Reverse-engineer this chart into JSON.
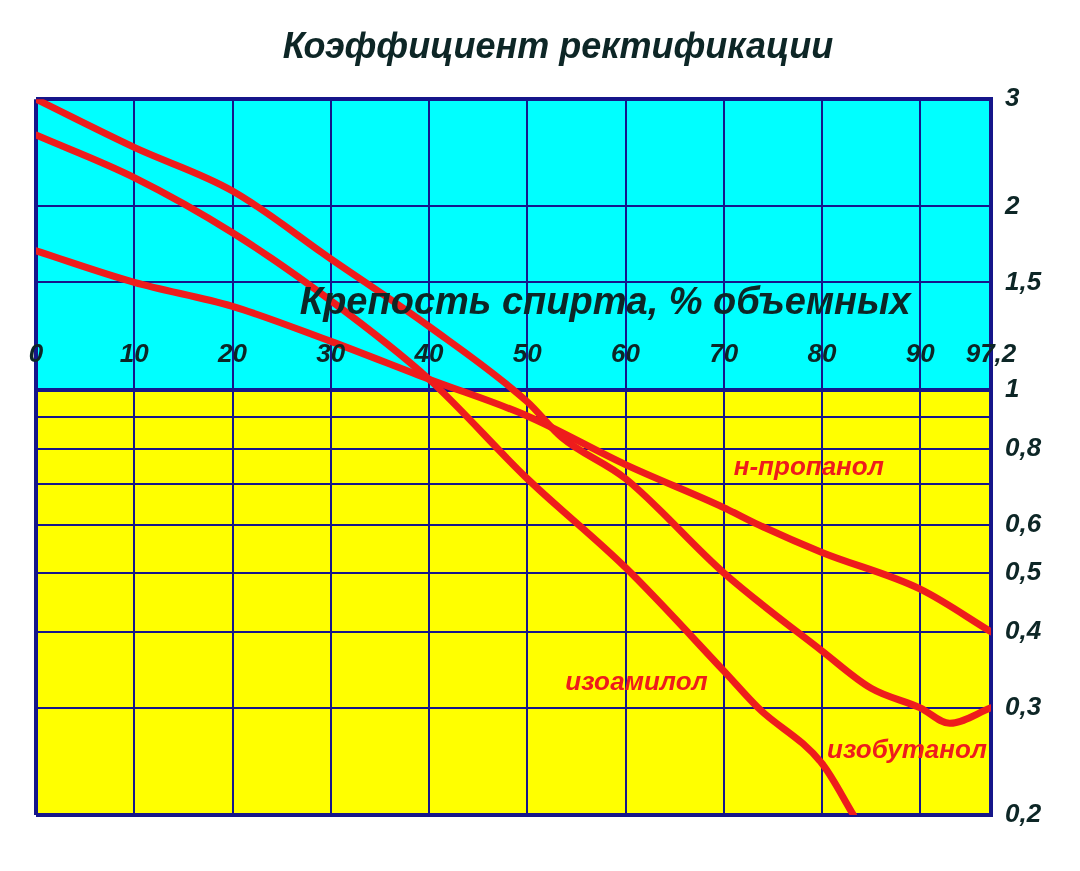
{
  "chart_data": {
    "type": "line",
    "title": "Коэффициент ректификации",
    "xlabel": "Крепость спирта, % объемных",
    "xlim": [
      0,
      97.2
    ],
    "xticks": [
      0,
      10,
      20,
      30,
      40,
      50,
      60,
      70,
      80,
      90,
      {
        "value": 97.2,
        "label": "97,2"
      }
    ],
    "ylim": [
      0.2,
      3
    ],
    "yticks": [
      3,
      2,
      {
        "value": 1.5,
        "label": "1,5"
      },
      1,
      {
        "value": 0.9,
        "label": null
      },
      {
        "value": 0.8,
        "label": "0,8"
      },
      {
        "value": 0.7,
        "label": null
      },
      {
        "value": 0.6,
        "label": "0,6"
      },
      {
        "value": 0.5,
        "label": "0,5"
      },
      {
        "value": 0.4,
        "label": "0,4"
      },
      {
        "value": 0.3,
        "label": "0,3"
      },
      {
        "value": 0.2,
        "label": "0,2"
      }
    ],
    "log": "y",
    "grid": true,
    "bands": [
      {
        "axis": "y",
        "from": 1,
        "to": 3,
        "label": null,
        "color": "#00ffff"
      },
      {
        "axis": "y",
        "from": 0.2,
        "to": 1,
        "label": null,
        "color": "#ffff00"
      }
    ],
    "series": [
      {
        "name": "изоамилол",
        "color": "#ee1c1c",
        "x": [
          0,
          10,
          20,
          30,
          40,
          50,
          60,
          70,
          73.5,
          80,
          83.2
        ],
        "values": [
          2.62,
          2.23,
          1.81,
          1.4,
          1.04,
          0.714,
          0.51,
          0.345,
          0.3,
          0.243,
          0.2
        ]
      },
      {
        "name": "изобутанол",
        "color": "#ee1c1c",
        "x": [
          0,
          10,
          20,
          30,
          40,
          50,
          53.5,
          60,
          70,
          80,
          85,
          90,
          93,
          97.2
        ],
        "values": [
          3,
          2.5,
          2.12,
          1.64,
          1.27,
          0.955,
          0.835,
          0.714,
          0.5,
          0.372,
          0.323,
          0.3,
          0.283,
          0.3
        ]
      },
      {
        "name": "н-пропанол",
        "color": "#ee1c1c",
        "x": [
          0,
          10,
          20,
          30,
          40,
          50,
          60,
          70,
          73.5,
          80,
          90,
          97.2
        ],
        "values": [
          1.69,
          1.5,
          1.37,
          1.2,
          1.04,
          0.905,
          0.753,
          0.64,
          0.6,
          0.54,
          0.47,
          0.4
        ]
      }
    ]
  }
}
